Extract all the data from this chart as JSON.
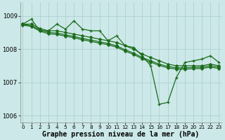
{
  "xlabel": "Graphe pression niveau de la mer (hPa)",
  "background_color": "#cce8e8",
  "grid_color": "#aacccc",
  "line_color": "#1a6b1a",
  "xlim": [
    -0.3,
    23.3
  ],
  "ylim": [
    1005.8,
    1009.4
  ],
  "yticks": [
    1006,
    1007,
    1008,
    1009
  ],
  "xticks": [
    0,
    1,
    2,
    3,
    4,
    5,
    6,
    7,
    8,
    9,
    10,
    11,
    12,
    13,
    14,
    15,
    16,
    17,
    18,
    19,
    20,
    21,
    22,
    23
  ],
  "series_jagged": [
    1008.75,
    1008.9,
    1008.55,
    1008.55,
    1008.75,
    1008.6,
    1008.85,
    1008.6,
    1008.55,
    1008.55,
    1008.25,
    1008.4,
    1008.1,
    1008.05,
    1007.8,
    1007.5,
    1006.35,
    1006.4,
    1007.15,
    1007.6,
    1007.65,
    1007.7,
    1007.8,
    1007.6
  ],
  "series_smooth1": [
    1008.75,
    1008.75,
    1008.62,
    1008.55,
    1008.55,
    1008.5,
    1008.45,
    1008.4,
    1008.35,
    1008.3,
    1008.25,
    1008.2,
    1008.1,
    1008.0,
    1007.85,
    1007.75,
    1007.65,
    1007.55,
    1007.5,
    1007.5,
    1007.5,
    1007.5,
    1007.55,
    1007.5
  ],
  "series_smooth2": [
    1008.75,
    1008.7,
    1008.58,
    1008.5,
    1008.48,
    1008.43,
    1008.38,
    1008.32,
    1008.27,
    1008.22,
    1008.17,
    1008.1,
    1007.98,
    1007.88,
    1007.75,
    1007.65,
    1007.55,
    1007.48,
    1007.44,
    1007.44,
    1007.45,
    1007.46,
    1007.5,
    1007.46
  ],
  "series_smooth3": [
    1008.72,
    1008.68,
    1008.54,
    1008.46,
    1008.44,
    1008.39,
    1008.34,
    1008.28,
    1008.23,
    1008.18,
    1008.13,
    1008.06,
    1007.94,
    1007.84,
    1007.71,
    1007.61,
    1007.51,
    1007.44,
    1007.4,
    1007.4,
    1007.41,
    1007.42,
    1007.46,
    1007.42
  ],
  "lw": 0.9,
  "ms_jagged": 3.5,
  "ms_smooth": 2.5,
  "xlabel_fontsize": 7,
  "tick_fontsize": 6
}
